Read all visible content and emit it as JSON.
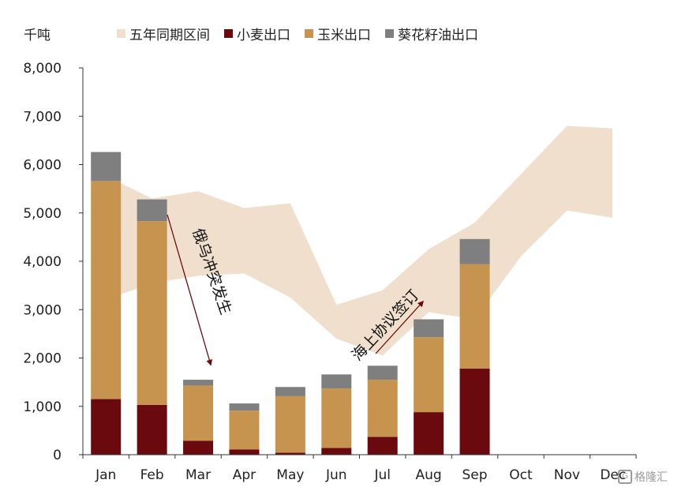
{
  "chart_data": {
    "type": "bar",
    "ylabel": "千吨",
    "categories": [
      "Jan",
      "Feb",
      "Mar",
      "Apr",
      "May",
      "Jun",
      "Jul",
      "Aug",
      "Sep",
      "Oct",
      "Nov",
      "Dec"
    ],
    "ylim": [
      0,
      8000
    ],
    "yticks": [
      "0",
      "1,000",
      "2,000",
      "3,000",
      "4,000",
      "5,000",
      "6,000",
      "7,000",
      "8,000"
    ],
    "legend_position": "top",
    "grid": false,
    "band": {
      "name": "五年同期区间",
      "color": "#efdfcc",
      "low": [
        3100,
        3550,
        3700,
        3750,
        3250,
        2400,
        2050,
        2950,
        2800,
        4100,
        5050,
        4900
      ],
      "high": [
        5900,
        5300,
        5450,
        5100,
        5200,
        3100,
        3400,
        4250,
        4800,
        5800,
        6800,
        6750
      ]
    },
    "series": [
      {
        "name": "小麦出口",
        "color": "#6b0a0e",
        "values": [
          1150,
          1030,
          290,
          110,
          40,
          140,
          370,
          880,
          1780,
          null,
          null,
          null
        ]
      },
      {
        "name": "玉米出口",
        "color": "#c7944f",
        "values": [
          4510,
          3800,
          1140,
          800,
          1170,
          1230,
          1180,
          1550,
          2160,
          null,
          null,
          null
        ]
      },
      {
        "name": "葵花籽油出口",
        "color": "#7f7f7f",
        "values": [
          600,
          450,
          120,
          150,
          190,
          290,
          290,
          370,
          520,
          null,
          null,
          null
        ]
      }
    ],
    "annotations": [
      {
        "text": "俄乌冲突发生",
        "color": "#6b0a0e"
      },
      {
        "text": "海上协议签订",
        "color": "#6b0a0e"
      }
    ]
  },
  "watermark": {
    "icon": "gelonghui-logo-icon",
    "text": "格隆汇"
  }
}
